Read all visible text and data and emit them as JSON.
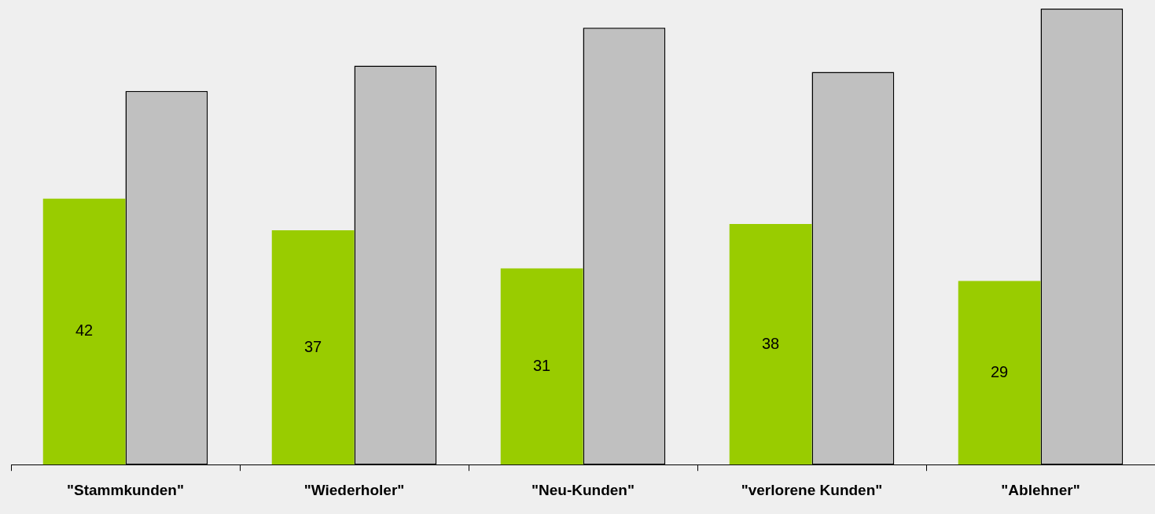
{
  "chart_data": {
    "type": "bar",
    "categories": [
      "\"Stammkunden\"",
      "\"Wiederholer\"",
      "\"Neu-Kunden\"",
      "\"verlorene Kunden\"",
      "\"Ablehner\""
    ],
    "series": [
      {
        "color": "#99cc00",
        "values": [
          42,
          37,
          31,
          38,
          29
        ],
        "value_labels": [
          "42",
          "37",
          "31",
          "38",
          "29"
        ]
      },
      {
        "color": "#c0c0c0",
        "values": [
          59,
          63,
          69,
          62,
          72
        ]
      }
    ],
    "tick_labels": "x",
    "grid": false,
    "legend": false
  }
}
